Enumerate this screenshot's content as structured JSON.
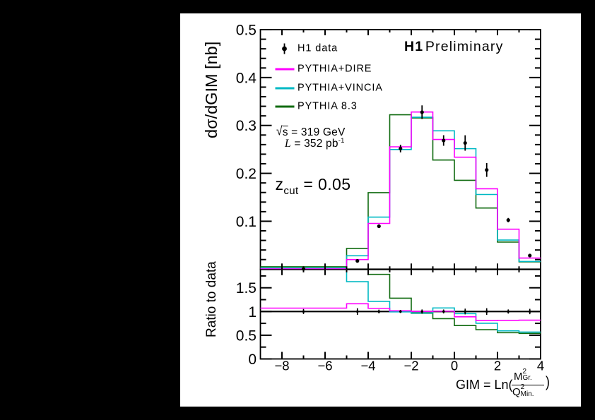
{
  "app": {
    "background_color": "#000000",
    "canvas_color": "#ffffff"
  },
  "header": {
    "experiment": "H1",
    "status": "Preliminary"
  },
  "legend": {
    "data_label": "H1 data",
    "series_labels": [
      "PYTHIA+DIRE",
      "PYTHIA+VINCIA",
      "PYTHIA 8.3"
    ]
  },
  "annotations": {
    "sqrt_s": {
      "sign": "√",
      "symbol": "s",
      "rest": " = 319 GeV"
    },
    "luminosity": {
      "symbol": "L",
      "rest": " = 352 pb",
      "sup": "-1"
    },
    "zcut": {
      "base": "z",
      "sub": "cut",
      "rest": " = 0.05"
    }
  },
  "chart_data": {
    "type": "line",
    "style": "step-histogram-with-ratio-panel",
    "title": "H1 Preliminary",
    "xlabel": {
      "prefix": "GIM = Ln(",
      "numerator": {
        "base": "M",
        "sup": "2",
        "sub": "Gr."
      },
      "denominator": {
        "base": "Q",
        "sup": "2",
        "sub": "Min."
      },
      "suffix": ")"
    },
    "main_panel": {
      "ylabel": "dσ/dGIM [nb]",
      "ylim": [
        0,
        0.5
      ],
      "y_major_ticks": [
        0.1,
        0.2,
        0.3,
        0.4,
        0.5
      ],
      "y_major_labels": [
        "0.1",
        "0.2",
        "0.3",
        "0.4",
        "0.5"
      ],
      "y_minor_step": 0.02,
      "grid": false
    },
    "ratio_panel": {
      "ylabel": "Ratio to data",
      "ylim": [
        0,
        1.885
      ],
      "y_major_ticks": [
        0,
        0.5,
        1.0,
        1.5
      ],
      "y_major_labels": [
        "0",
        "0.5",
        "1",
        "1.5"
      ],
      "y_minor_step": 0.25,
      "reference_line": 1.0,
      "grid": false
    },
    "x_axis": {
      "xlim": [
        -9,
        4
      ],
      "major_ticks": [
        -8,
        -6,
        -4,
        -2,
        0,
        2,
        4
      ],
      "major_labels": [
        "−8",
        "−6",
        "−4",
        "−2",
        "0",
        "2",
        "4"
      ],
      "minor_ticks": [
        -7,
        -5,
        -3,
        -1,
        1,
        3
      ]
    },
    "bin_edges": [
      -9,
      -5,
      -4,
      -3,
      -2,
      -1,
      0,
      1,
      2,
      3,
      4
    ],
    "data_points": {
      "name": "H1 data",
      "color": "#000000",
      "x": [
        -7,
        -4.5,
        -3.5,
        -2.5,
        -1.5,
        -0.5,
        0.5,
        1.5,
        2.5,
        3.5
      ],
      "y": [
        0.00056,
        0.0172,
        0.0896,
        0.2518,
        0.3277,
        0.2686,
        0.2634,
        0.2071,
        0.1024,
        0.0284
      ],
      "yerr": [
        3e-05,
        0.0012,
        0.0035,
        0.008,
        0.0142,
        0.011,
        0.0161,
        0.0145,
        0.0045,
        0.0016
      ]
    },
    "series": [
      {
        "name": "PYTHIA+DIRE",
        "color": "#ff00ff",
        "values": [
          0.0006,
          0.02,
          0.0955,
          0.2554,
          0.3281,
          0.2707,
          0.2338,
          0.1678,
          0.0834,
          0.0232
        ]
      },
      {
        "name": "PYTHIA+VINCIA",
        "color": "#00b9c4",
        "values": [
          0.0024,
          0.028,
          0.1087,
          0.2498,
          0.3172,
          0.2888,
          0.2515,
          0.1559,
          0.0607,
          0.0161
        ]
      },
      {
        "name": "PYTHIA 8.3",
        "color": "#106b10",
        "values": [
          0.005,
          0.0432,
          0.1597,
          0.3224,
          0.3156,
          0.2279,
          0.1855,
          0.1276,
          0.0566,
          0.0153
        ]
      }
    ],
    "legend_position": "top-left",
    "axes_color": "#000000"
  }
}
